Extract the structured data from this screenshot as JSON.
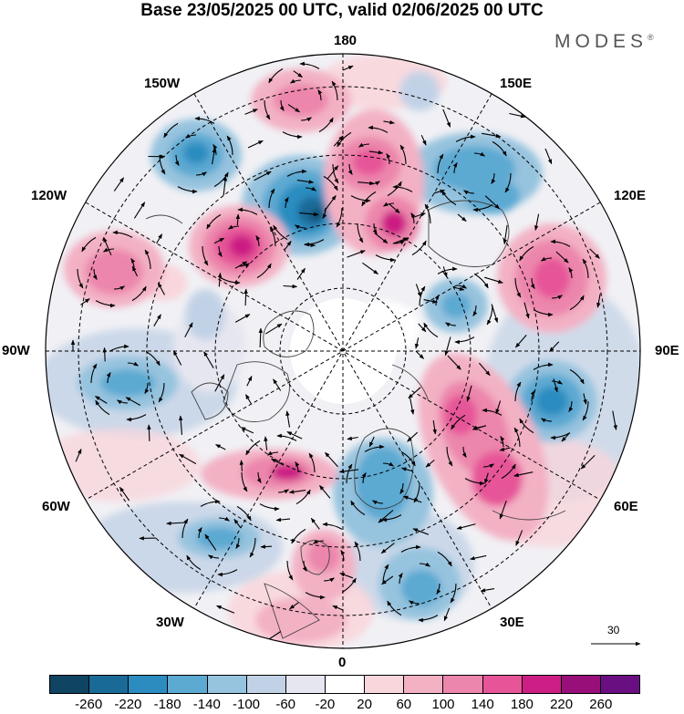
{
  "header": {
    "title": "Base 23/05/2025 00 UTC, valid 02/06/2025 00 UTC",
    "brand": "MODES",
    "brand_mark": "®"
  },
  "map": {
    "longitude_labels": {
      "top": "180",
      "bottom": "0",
      "left": "90W",
      "right": "90E",
      "upper_left_1": "150W",
      "upper_left_2": "120W",
      "lower_left_1": "60W",
      "lower_left_2": "30W",
      "upper_right_1": "150E",
      "upper_right_2": "120E",
      "lower_right_1": "60E",
      "lower_right_2": "30E"
    },
    "vector_scale_value": "30"
  },
  "legend": {
    "colors": [
      "#0f4462",
      "#1a6a98",
      "#2c8cc0",
      "#5ca9d2",
      "#96c3de",
      "#c2d2e6",
      "#e6e6f0",
      "#ffffff",
      "#f8d6dc",
      "#f3b1c4",
      "#ec86ac",
      "#e65598",
      "#cc1e84",
      "#990f7a",
      "#6a0f82"
    ],
    "labels": [
      "-260",
      "-220",
      "-180",
      "-140",
      "-100",
      "-60",
      "-20",
      "20",
      "60",
      "100",
      "140",
      "180",
      "220",
      "260"
    ]
  }
}
